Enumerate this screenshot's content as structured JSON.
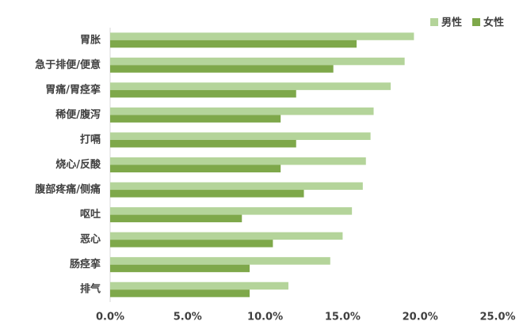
{
  "chart_data": {
    "type": "hbar",
    "categories": [
      "胃胀",
      "急于排便/便意",
      "胃痛/胃痉挛",
      "稀便/腹泻",
      "打嗝",
      "烧心/反酸",
      "腹部疼痛/侧痛",
      "呕吐",
      "恶心",
      "肠痉挛",
      "排气"
    ],
    "series": [
      {
        "name": "男性",
        "color": "#b4d49a",
        "values": [
          19.6,
          19.0,
          18.1,
          17.0,
          16.8,
          16.5,
          16.3,
          15.6,
          15.0,
          14.2,
          11.5
        ]
      },
      {
        "name": "女性",
        "color": "#7ea84a",
        "values": [
          15.9,
          14.4,
          12.0,
          11.0,
          12.0,
          11.0,
          12.5,
          8.5,
          10.5,
          9.0,
          9.0
        ]
      }
    ],
    "xlim": [
      0,
      25
    ],
    "xticks": [
      {
        "value": 0,
        "label": "0.0%"
      },
      {
        "value": 5,
        "label": "5.0%"
      },
      {
        "value": 10,
        "label": "10.0%"
      },
      {
        "value": 15,
        "label": "15.0%"
      },
      {
        "value": 20,
        "label": "20.0%"
      },
      {
        "value": 25,
        "label": "25.0%"
      }
    ],
    "grid": false,
    "legend": "top-right"
  }
}
